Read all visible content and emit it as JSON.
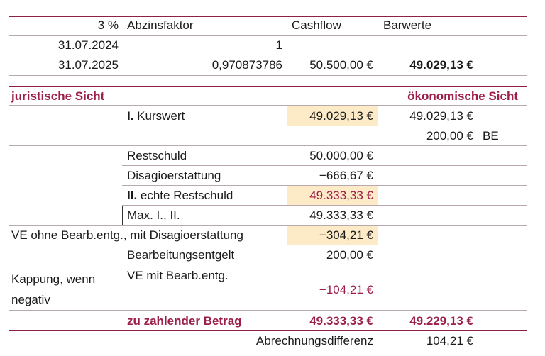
{
  "header": {
    "rate": "3 %",
    "abzinsfaktor": "Abzinsfaktor",
    "cashflow": "Cashflow",
    "barwerte": "Barwerte"
  },
  "rows": {
    "r1_date": "31.07.2024",
    "r1_factor": "1",
    "r2_date": "31.07.2025",
    "r2_factor": "0,970873786",
    "r2_cashflow": "50.500,00 €",
    "r2_barwert": "49.029,13 €"
  },
  "sections": {
    "juristisch": "juristische Sicht",
    "oekonomisch": "ökonomische Sicht"
  },
  "kurswert": {
    "label_bold": "I.",
    "label": " Kurswert",
    "value": "49.029,13 €",
    "oek_value": "49.029,13 €"
  },
  "be": {
    "value": "200,00 €",
    "label": "BE"
  },
  "restschuld": {
    "label": "Restschuld",
    "value": "50.000,00 €"
  },
  "disagio": {
    "label": "Disagioerstattung",
    "value": "−666,67 €"
  },
  "echte_restschuld": {
    "label_bold": "II.",
    "label": " echte Restschuld",
    "value": "49.333,33 €"
  },
  "max": {
    "label": "Max. I., II.",
    "value": "49.333,33 €"
  },
  "ve_ohne": {
    "label": "VE ohne Bearb.entg., mit Disagioerstattung",
    "value": "−304,21 €"
  },
  "bearbeitung": {
    "label": "Bearbeitungsentgelt",
    "value": "200,00 €"
  },
  "kappung": {
    "line1": "Kappung, wenn",
    "line2": "negativ"
  },
  "ve_mit": {
    "label": "VE mit Bearb.entg.",
    "value": "−104,21 €"
  },
  "zahlbetrag": {
    "label": "zu zahlender Betrag",
    "value": "49.333,33 €",
    "oek_value": "49.229,13 €"
  },
  "differenz": {
    "label": "Abrechnungsdifferenz",
    "value": "104,21 €"
  },
  "colors": {
    "accent": "#9c1f4a",
    "highlight": "#fdebc8"
  }
}
